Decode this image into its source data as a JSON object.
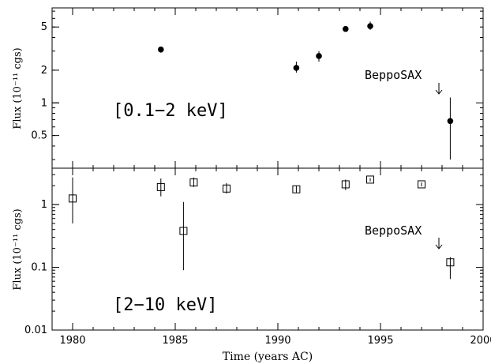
{
  "chart_data": [
    {
      "type": "scatter",
      "panel": "top",
      "band_label": "[0.1−2 keV]",
      "ylabel": "Flux (10⁻¹¹ cgs)",
      "yscale": "log",
      "ylim": [
        0.25,
        7.5
      ],
      "xlim": [
        1979,
        2000
      ],
      "yticks": [
        {
          "v": 0.5,
          "label": "0.5"
        },
        {
          "v": 1,
          "label": "1"
        },
        {
          "v": 2,
          "label": "2"
        },
        {
          "v": 5,
          "label": "5"
        }
      ],
      "marker": "filled-circle",
      "points": [
        {
          "x": 1984.3,
          "y": 3.1,
          "ylo": 2.9,
          "yhi": 3.3
        },
        {
          "x": 1990.9,
          "y": 2.1,
          "ylo": 1.9,
          "yhi": 2.4
        },
        {
          "x": 1992.0,
          "y": 2.7,
          "ylo": 2.4,
          "yhi": 3.0
        },
        {
          "x": 1993.3,
          "y": 4.8,
          "ylo": 4.6,
          "yhi": 5.0
        },
        {
          "x": 1994.5,
          "y": 5.1,
          "ylo": 4.7,
          "yhi": 5.6
        },
        {
          "x": 1998.4,
          "y": 0.68,
          "ylo": 0.3,
          "yhi": 1.12
        }
      ],
      "annotation": {
        "text": "BeppoSAX",
        "x": 1998.4
      }
    },
    {
      "type": "scatter",
      "panel": "bottom",
      "band_label": "[2−10 keV]",
      "ylabel": "Flux (10⁻¹¹ cgs)",
      "xlabel": "Time (years AC)",
      "yscale": "log",
      "ylim": [
        0.01,
        3.8
      ],
      "xlim": [
        1979,
        2000
      ],
      "yticks": [
        {
          "v": 0.01,
          "label": "0.01"
        },
        {
          "v": 0.1,
          "label": "0.1"
        },
        {
          "v": 1,
          "label": "1"
        }
      ],
      "xticks": [
        {
          "v": 1980,
          "label": "1980"
        },
        {
          "v": 1985,
          "label": "1985"
        },
        {
          "v": 1990,
          "label": "1990"
        },
        {
          "v": 1995,
          "label": "1995"
        },
        {
          "v": 2000,
          "label": "2000"
        }
      ],
      "marker": "open-square",
      "points": [
        {
          "x": 1980.0,
          "y": 1.25,
          "ylo": 0.5,
          "yhi": 2.7
        },
        {
          "x": 1984.3,
          "y": 1.9,
          "ylo": 1.35,
          "yhi": 2.6
        },
        {
          "x": 1985.4,
          "y": 0.38,
          "ylo": 0.09,
          "yhi": 1.1
        },
        {
          "x": 1985.9,
          "y": 2.25,
          "ylo": 1.9,
          "yhi": 2.7
        },
        {
          "x": 1987.5,
          "y": 1.8,
          "ylo": 1.5,
          "yhi": 2.2
        },
        {
          "x": 1990.9,
          "y": 1.75,
          "ylo": 1.55,
          "yhi": 2.0
        },
        {
          "x": 1993.3,
          "y": 2.1,
          "ylo": 1.7,
          "yhi": 2.5
        },
        {
          "x": 1994.5,
          "y": 2.5,
          "ylo": 2.35,
          "yhi": 2.65
        },
        {
          "x": 1997.0,
          "y": 2.1,
          "ylo": 1.95,
          "yhi": 2.25
        },
        {
          "x": 1998.4,
          "y": 0.12,
          "ylo": 0.065,
          "yhi": 0.145
        }
      ],
      "annotation": {
        "text": "BeppoSAX",
        "x": 1998.4
      }
    }
  ]
}
